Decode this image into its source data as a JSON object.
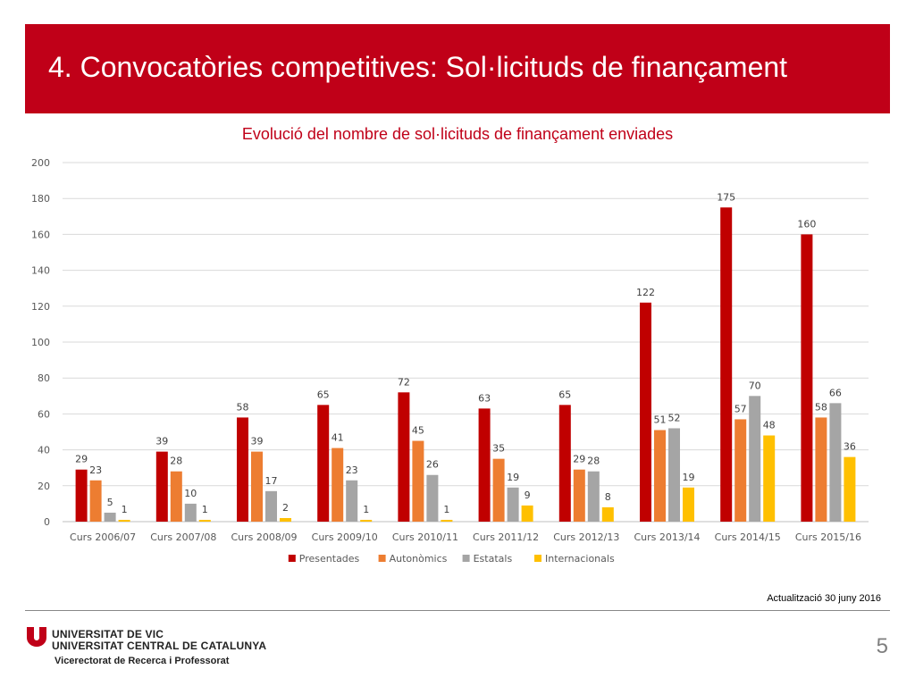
{
  "slide": {
    "title": "4. Convocatòries competitives: Sol·licituds de finançament",
    "update_note": "Actualització 30 juny 2016",
    "university_line1": "UNIVERSITAT DE VIC",
    "university_line2": "UNIVERSITAT CENTRAL DE CATALUNYA",
    "vicerectorat": "Vicerectorat de Recerca i Professorat",
    "page_number": "5"
  },
  "colors": {
    "header_bg": "#c00018",
    "title_text": "#c00018"
  },
  "chart_data": {
    "type": "bar",
    "title": "Evolució del nombre de sol·licituds de finançament enviades",
    "xlabel": "",
    "ylabel": "",
    "ylim": [
      0,
      200
    ],
    "yticks": [
      0,
      20,
      40,
      60,
      80,
      100,
      120,
      140,
      160,
      180,
      200
    ],
    "grid": true,
    "legend_position": "bottom",
    "categories": [
      "Curs 2006/07",
      "Curs 2007/08",
      "Curs 2008/09",
      "Curs 2009/10",
      "Curs 2010/11",
      "Curs 2011/12",
      "Curs 2012/13",
      "Curs 2013/14",
      "Curs 2014/15",
      "Curs 2015/16"
    ],
    "series": [
      {
        "name": "Presentades",
        "color": "#c00000",
        "values": [
          29,
          39,
          58,
          65,
          72,
          63,
          65,
          122,
          175,
          160
        ]
      },
      {
        "name": "Autonòmics",
        "color": "#ed7d31",
        "values": [
          23,
          28,
          39,
          41,
          45,
          35,
          29,
          51,
          57,
          58
        ]
      },
      {
        "name": "Estatals",
        "color": "#a5a5a5",
        "values": [
          5,
          10,
          17,
          23,
          26,
          19,
          28,
          52,
          70,
          66
        ]
      },
      {
        "name": "Internacionals",
        "color": "#ffc000",
        "values": [
          1,
          1,
          2,
          1,
          1,
          9,
          8,
          19,
          48,
          36
        ]
      }
    ]
  }
}
